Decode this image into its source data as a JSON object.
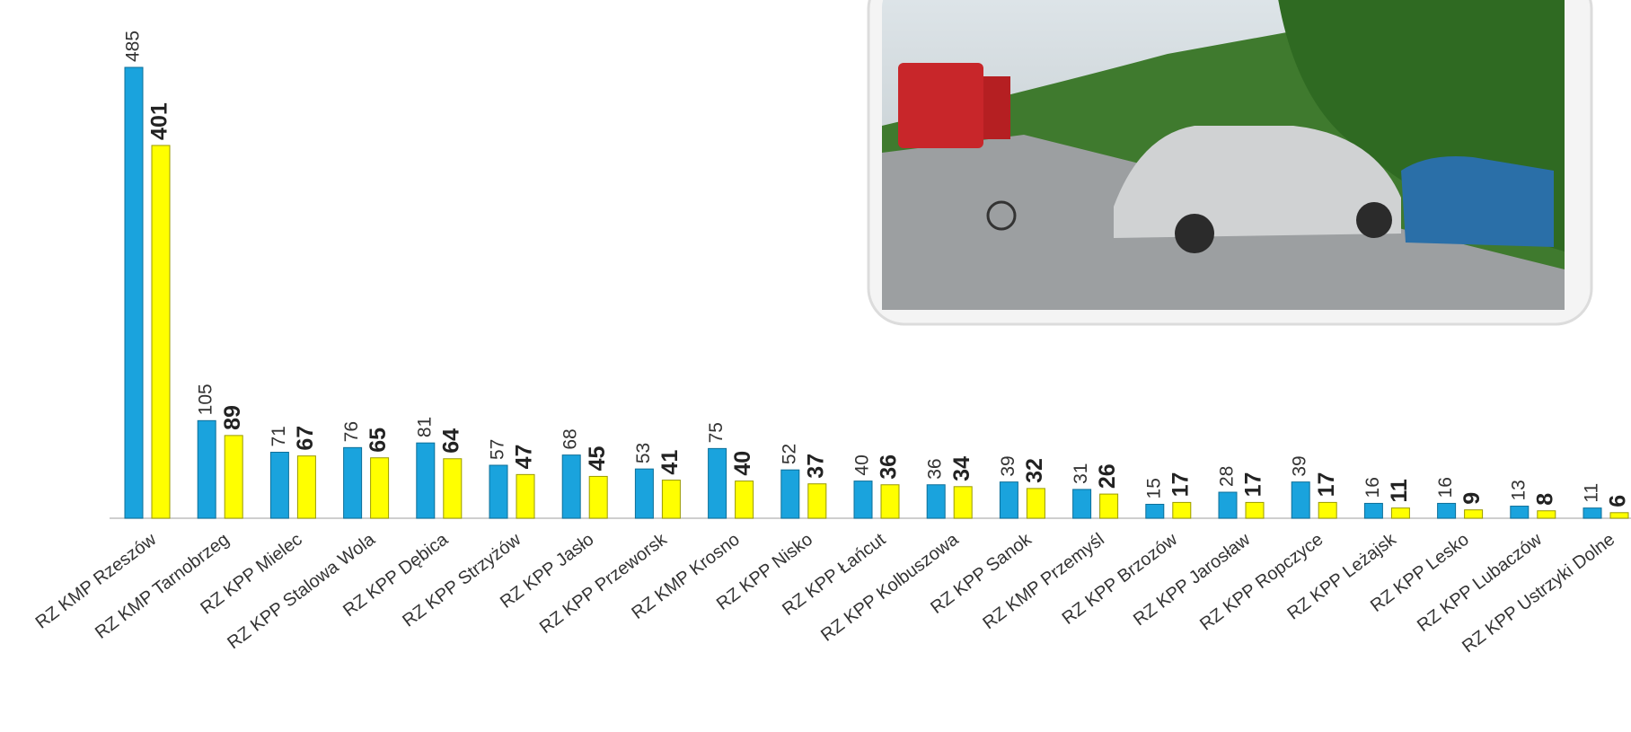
{
  "chart_data": {
    "type": "bar",
    "categories": [
      "RZ KMP Rzeszów",
      "RZ KMP Tarnobrzeg",
      "RZ KPP Mielec",
      "RZ KPP Stalowa Wola",
      "RZ KPP Dębica",
      "RZ KPP Strzyżów",
      "RZ KPP Jasło",
      "RZ KPP Przeworsk",
      "RZ KMP Krosno",
      "RZ KPP Nisko",
      "RZ KPP Łańcut",
      "RZ KPP Kolbuszowa",
      "RZ KPP Sanok",
      "RZ KMP Przemyśl",
      "RZ KPP Brzozów",
      "RZ KPP Jarosław",
      "RZ KPP Ropczyce",
      "RZ KPP Leżajsk",
      "RZ KPP Lesko",
      "RZ KPP Lubaczów",
      "RZ KPP Ustrzyki Dolne"
    ],
    "series": [
      {
        "color": "#1aa3dd",
        "values": [
          485,
          105,
          71,
          76,
          81,
          57,
          68,
          53,
          75,
          52,
          40,
          36,
          39,
          31,
          15,
          28,
          39,
          16,
          16,
          13,
          11
        ]
      },
      {
        "color": "#ffff00",
        "values": [
          401,
          89,
          67,
          65,
          64,
          47,
          45,
          41,
          40,
          37,
          36,
          34,
          32,
          26,
          17,
          17,
          17,
          11,
          9,
          8,
          6
        ]
      }
    ]
  }
}
